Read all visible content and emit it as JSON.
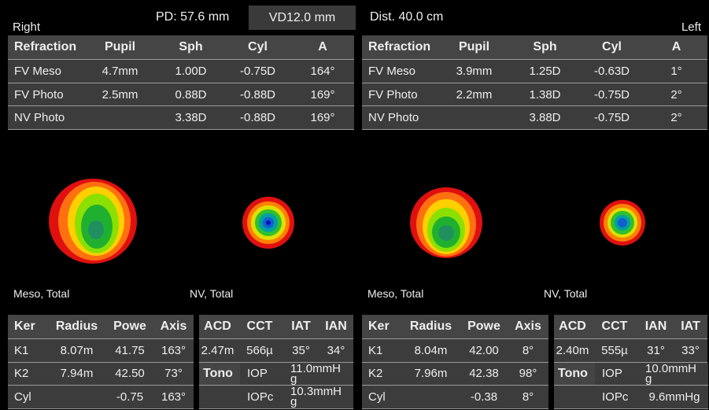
{
  "header": {
    "pd": "PD:  57.6 mm",
    "vd": "VD12.0 mm",
    "dist": "Dist. 40.0 cm"
  },
  "right": {
    "label": "Right",
    "refraction": {
      "columns": [
        "Refraction",
        "Pupil",
        "Sph",
        "Cyl",
        "A"
      ],
      "rows": [
        [
          "FV Meso",
          "4.7mm",
          "1.00D",
          "-0.75D",
          "164°"
        ],
        [
          "FV Photo",
          "2.5mm",
          "0.88D",
          "-0.88D",
          "169°"
        ],
        [
          "NV Photo",
          null,
          "3.38D",
          "-0.88D",
          "169°"
        ]
      ]
    },
    "maps": [
      "Meso, Total",
      "NV, Total"
    ],
    "keratometry": {
      "columns": [
        "Ker",
        "Radius",
        "Powe",
        "Axis"
      ],
      "rows": [
        [
          "K1",
          "8.07m",
          "41.75",
          "163°"
        ],
        [
          "K2",
          "7.94m",
          "42.50",
          "73°"
        ],
        [
          "Cyl",
          null,
          "-0.75",
          "163°"
        ]
      ]
    },
    "chamber": {
      "columns": [
        "ACD",
        "CCT",
        "IAT",
        "IAN"
      ],
      "rows": [
        [
          "2.47m",
          "566µ",
          "35°",
          "34°"
        ]
      ]
    },
    "tono": {
      "label": "Tono",
      "rows": [
        [
          "IOP",
          "11.0mmHg"
        ],
        [
          "IOPc",
          "10.3mmHg"
        ]
      ]
    }
  },
  "left": {
    "label": "Left",
    "refraction": {
      "columns": [
        "Refraction",
        "Pupil",
        "Sph",
        "Cyl",
        "A"
      ],
      "rows": [
        [
          "FV Meso",
          "3.9mm",
          "1.25D",
          "-0.63D",
          "1°"
        ],
        [
          "FV Photo",
          "2.2mm",
          "1.38D",
          "-0.75D",
          "2°"
        ],
        [
          "NV Photo",
          null,
          "3.88D",
          "-0.75D",
          "2°"
        ]
      ]
    },
    "maps": [
      "Meso, Total",
      "NV, Total"
    ],
    "keratometry": {
      "columns": [
        "Ker",
        "Radius",
        "Powe",
        "Axis"
      ],
      "rows": [
        [
          "K1",
          "8.04m",
          "42.00",
          "8°"
        ],
        [
          "K2",
          "7.96m",
          "42.38",
          "98°"
        ],
        [
          "Cyl",
          null,
          "-0.38",
          "8°"
        ]
      ]
    },
    "chamber": {
      "columns": [
        "ACD",
        "CCT",
        "IAN",
        "IAT"
      ],
      "rows": [
        [
          "2.40m",
          "555µ",
          "31°",
          "33°"
        ]
      ]
    },
    "tono": {
      "label": "Tono",
      "rows": [
        [
          "IOP",
          "10.0mmHg"
        ],
        [
          "IOPc",
          "9.6mmHg"
        ]
      ]
    }
  }
}
